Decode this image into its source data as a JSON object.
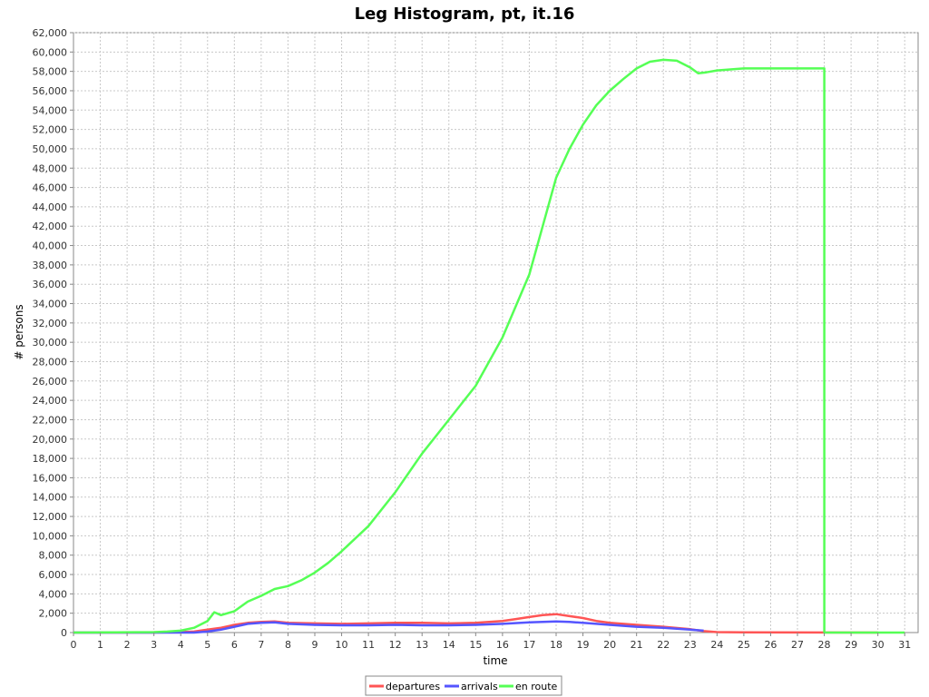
{
  "chart_data": {
    "type": "line",
    "title": "Leg Histogram, pt, it.16",
    "xlabel": "time",
    "ylabel": "# persons",
    "xlim": [
      0,
      31.5
    ],
    "ylim": [
      0,
      62000
    ],
    "x_ticks": [
      "0",
      "1",
      "2",
      "3",
      "4",
      "5",
      "6",
      "7",
      "8",
      "9",
      "10",
      "11",
      "12",
      "13",
      "14",
      "15",
      "16",
      "17",
      "18",
      "19",
      "20",
      "21",
      "22",
      "23",
      "24",
      "25",
      "26",
      "27",
      "28",
      "29",
      "30",
      "31"
    ],
    "y_ticks": [
      "0",
      "2,000",
      "4,000",
      "6,000",
      "8,000",
      "10,000",
      "12,000",
      "14,000",
      "16,000",
      "18,000",
      "20,000",
      "22,000",
      "24,000",
      "26,000",
      "28,000",
      "30,000",
      "32,000",
      "34,000",
      "36,000",
      "38,000",
      "40,000",
      "42,000",
      "44,000",
      "46,000",
      "48,000",
      "50,000",
      "52,000",
      "54,000",
      "56,000",
      "58,000",
      "60,000",
      "62,000"
    ],
    "grid": true,
    "legend_position": "bottom-center",
    "series": [
      {
        "name": "departures",
        "color": "#ff5555",
        "points": [
          [
            0,
            0
          ],
          [
            3,
            0
          ],
          [
            4,
            50
          ],
          [
            4.5,
            100
          ],
          [
            5,
            300
          ],
          [
            5.5,
            500
          ],
          [
            6,
            800
          ],
          [
            6.5,
            1000
          ],
          [
            7,
            1100
          ],
          [
            7.5,
            1150
          ],
          [
            8,
            1000
          ],
          [
            9,
            950
          ],
          [
            10,
            900
          ],
          [
            11,
            950
          ],
          [
            12,
            1000
          ],
          [
            13,
            1000
          ],
          [
            14,
            950
          ],
          [
            15,
            1000
          ],
          [
            16,
            1200
          ],
          [
            16.5,
            1400
          ],
          [
            17,
            1600
          ],
          [
            17.5,
            1800
          ],
          [
            18,
            1900
          ],
          [
            18.5,
            1700
          ],
          [
            19,
            1500
          ],
          [
            19.5,
            1200
          ],
          [
            20,
            1000
          ],
          [
            21,
            800
          ],
          [
            22,
            600
          ],
          [
            23,
            350
          ],
          [
            23.5,
            150
          ],
          [
            24,
            50
          ],
          [
            25,
            20
          ],
          [
            30,
            0
          ]
        ]
      },
      {
        "name": "arrivals",
        "color": "#5555ff",
        "points": [
          [
            0,
            0
          ],
          [
            4.5,
            0
          ],
          [
            5,
            100
          ],
          [
            5.5,
            300
          ],
          [
            6,
            600
          ],
          [
            6.5,
            900
          ],
          [
            7,
            1000
          ],
          [
            7.5,
            1050
          ],
          [
            8,
            900
          ],
          [
            9,
            800
          ],
          [
            10,
            750
          ],
          [
            11,
            750
          ],
          [
            12,
            800
          ],
          [
            13,
            750
          ],
          [
            14,
            750
          ],
          [
            15,
            800
          ],
          [
            16,
            900
          ],
          [
            17,
            1050
          ],
          [
            18,
            1150
          ],
          [
            18.5,
            1100
          ],
          [
            19,
            1000
          ],
          [
            20,
            800
          ],
          [
            21,
            600
          ],
          [
            22,
            500
          ],
          [
            23,
            300
          ],
          [
            23.5,
            200
          ]
        ]
      },
      {
        "name": "en route",
        "color": "#55ff55",
        "points": [
          [
            0,
            0
          ],
          [
            3,
            50
          ],
          [
            3.5,
            100
          ],
          [
            4,
            200
          ],
          [
            4.5,
            500
          ],
          [
            5,
            1200
          ],
          [
            5.25,
            2100
          ],
          [
            5.5,
            1800
          ],
          [
            6,
            2200
          ],
          [
            6.5,
            3200
          ],
          [
            7,
            3800
          ],
          [
            7.5,
            4500
          ],
          [
            8,
            4800
          ],
          [
            8.5,
            5400
          ],
          [
            9,
            6200
          ],
          [
            9.5,
            7200
          ],
          [
            10,
            8400
          ],
          [
            11,
            11000
          ],
          [
            12,
            14500
          ],
          [
            13,
            18500
          ],
          [
            14,
            22000
          ],
          [
            15,
            25500
          ],
          [
            16,
            30500
          ],
          [
            17,
            37000
          ],
          [
            17.5,
            42000
          ],
          [
            18,
            47000
          ],
          [
            18.5,
            50000
          ],
          [
            19,
            52500
          ],
          [
            19.5,
            54500
          ],
          [
            20,
            56000
          ],
          [
            20.5,
            57200
          ],
          [
            21,
            58300
          ],
          [
            21.5,
            59000
          ],
          [
            22,
            59200
          ],
          [
            22.5,
            59100
          ],
          [
            23,
            58400
          ],
          [
            23.3,
            57800
          ],
          [
            23.6,
            57900
          ],
          [
            24,
            58100
          ],
          [
            25,
            58300
          ],
          [
            28,
            58300
          ],
          [
            28,
            0
          ],
          [
            31,
            0
          ]
        ]
      }
    ]
  }
}
